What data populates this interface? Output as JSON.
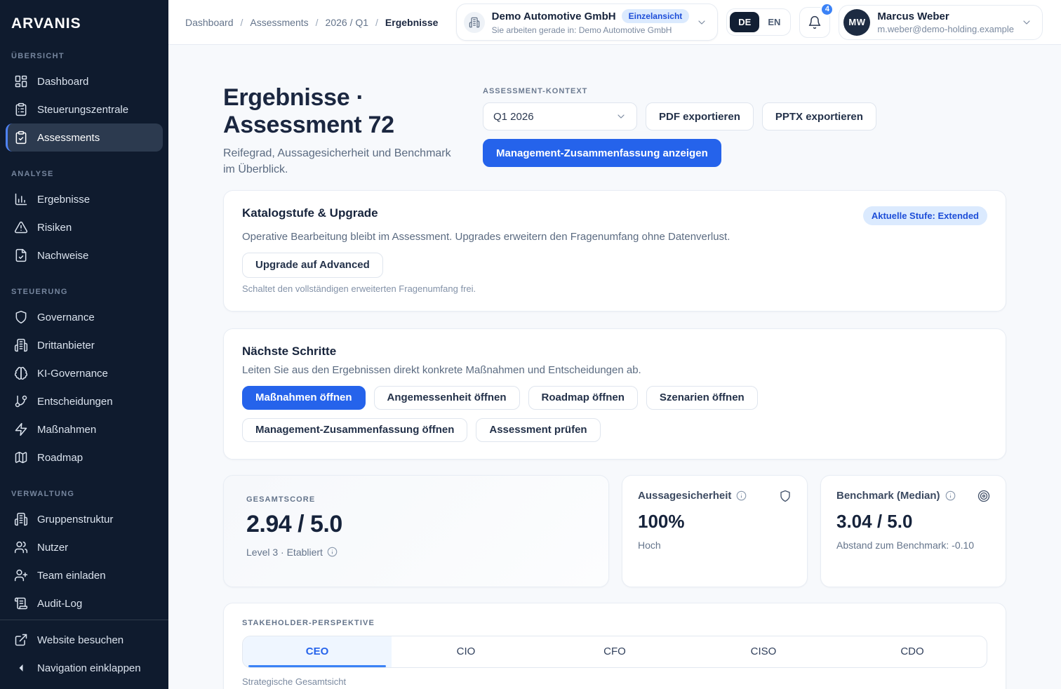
{
  "colors": {
    "accent": "#2563eb",
    "accent_light": "#3b82f6",
    "sidebar_bg": "#0f1b2e",
    "sidebar_active_bg": "#2c3a4f",
    "badge_bg": "#dbeafe",
    "badge_text": "#1d4ed8",
    "page_bg": "#f7f9fc",
    "text_dark": "#1b2740",
    "text_muted": "#64748b"
  },
  "sidebar": {
    "brand": "ARVANIS",
    "sections": [
      {
        "title": "Übersicht",
        "items": [
          {
            "label": "Dashboard",
            "icon": "dashboard-icon"
          },
          {
            "label": "Steuerungszentrale",
            "icon": "clipboard-list-icon"
          },
          {
            "label": "Assessments",
            "icon": "clipboard-check-icon",
            "active": true
          }
        ]
      },
      {
        "title": "Analyse",
        "items": [
          {
            "label": "Ergebnisse",
            "icon": "bar-chart-icon"
          },
          {
            "label": "Risiken",
            "icon": "alert-triangle-icon"
          },
          {
            "label": "Nachweise",
            "icon": "file-check-icon"
          }
        ]
      },
      {
        "title": "Steuerung",
        "items": [
          {
            "label": "Governance",
            "icon": "shield-icon"
          },
          {
            "label": "Drittanbieter",
            "icon": "building-icon"
          },
          {
            "label": "KI-Governance",
            "icon": "brain-icon"
          },
          {
            "label": "Entscheidungen",
            "icon": "git-branch-icon"
          },
          {
            "label": "Maßnahmen",
            "icon": "zap-icon"
          },
          {
            "label": "Roadmap",
            "icon": "map-icon"
          }
        ]
      },
      {
        "title": "Verwaltung",
        "items": [
          {
            "label": "Gruppenstruktur",
            "icon": "building-icon"
          },
          {
            "label": "Nutzer",
            "icon": "users-icon"
          },
          {
            "label": "Team einladen",
            "icon": "user-plus-icon"
          },
          {
            "label": "Audit-Log",
            "icon": "scroll-icon"
          }
        ]
      }
    ],
    "footer_items": [
      {
        "label": "Website besuchen",
        "icon": "external-link-icon"
      },
      {
        "label": "Navigation einklappen",
        "icon": "collapse-icon"
      }
    ]
  },
  "header": {
    "breadcrumbs": [
      "Dashboard",
      "Assessments",
      "2026 / Q1",
      "Ergebnisse"
    ],
    "company": {
      "icon": "building-icon",
      "name": "Demo Automotive GmbH",
      "badge": "Einzelansicht",
      "subtitle": "Sie arbeiten gerade in: Demo Automotive GmbH"
    },
    "lang": {
      "de": "DE",
      "en": "EN"
    },
    "notifications": {
      "icon": "bell-icon",
      "count": "4"
    },
    "user": {
      "initials": "MW",
      "name": "Marcus Weber",
      "email": "m.weber@demo-holding.example"
    }
  },
  "page": {
    "title": "Ergebnisse · Assessment 72",
    "subtitle": "Reifegrad, Aussagesicherheit und Benchmark im Überblick.",
    "context_label": "Assessment-Kontext",
    "context_value": "Q1 2026",
    "export_pdf": "PDF exportieren",
    "export_pptx": "PPTX exportieren",
    "summary_button": "Management-Zusammenfassung anzeigen"
  },
  "upgrade_card": {
    "title": "Katalogstufe & Upgrade",
    "badge": "Aktuelle Stufe: Extended",
    "description": "Operative Bearbeitung bleibt im Assessment. Upgrades erweitern den Fragenumfang ohne Datenverlust.",
    "button": "Upgrade auf Advanced",
    "note": "Schaltet den vollständigen erweiterten Fragenumfang frei."
  },
  "next_steps": {
    "title": "Nächste Schritte",
    "description": "Leiten Sie aus den Ergebnissen direkt konkrete Maßnahmen und Entscheidungen ab.",
    "buttons": [
      {
        "label": "Maßnahmen öffnen",
        "primary": true
      },
      {
        "label": "Angemessenheit öffnen"
      },
      {
        "label": "Roadmap öffnen"
      },
      {
        "label": "Szenarien öffnen"
      },
      {
        "label": "Management-Zusammenfassung öffnen"
      },
      {
        "label": "Assessment prüfen"
      }
    ]
  },
  "metrics": {
    "score": {
      "label": "Gesamtscore",
      "value": "2.94 / 5.0",
      "note": "Level 3 · Etabliert"
    },
    "confidence": {
      "label": "Aussagesicherheit",
      "value": "100%",
      "note": "Hoch",
      "icon": "shield-icon"
    },
    "benchmark": {
      "label": "Benchmark (Median)",
      "value": "3.04 / 5.0",
      "note": "Abstand zum Benchmark: -0.10",
      "icon": "target-icon"
    }
  },
  "stakeholder": {
    "label": "Stakeholder-Perspektive",
    "tabs": [
      "CEO",
      "CIO",
      "CFO",
      "CISO",
      "CDO"
    ],
    "active_tab": "CEO",
    "note": "Strategische Gesamtsicht"
  }
}
